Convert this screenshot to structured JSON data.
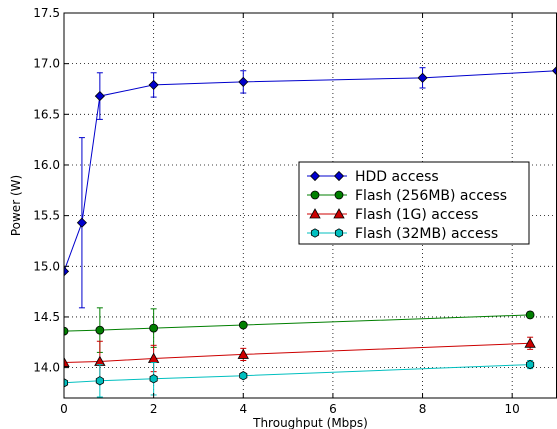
{
  "chart_data": {
    "type": "line",
    "title": "",
    "xlabel": "Throughput (Mbps)",
    "ylabel": "Power (W)",
    "xlim": [
      0,
      11
    ],
    "ylim": [
      13.7,
      17.5
    ],
    "xticks": [
      0,
      2,
      4,
      6,
      8,
      10
    ],
    "yticks": [
      14.0,
      14.5,
      15.0,
      15.5,
      16.0,
      16.5,
      17.0,
      17.5
    ],
    "ytick_labels": [
      "14.0",
      "14.5",
      "15.0",
      "15.5",
      "16.0",
      "16.5",
      "17.0",
      "17.5"
    ],
    "grid": true,
    "legend_position": "center-right",
    "series": [
      {
        "name": "HDD access",
        "color": "#0000cc",
        "marker": "diamond",
        "x": [
          0,
          0.4,
          0.8,
          2,
          4,
          8,
          11
        ],
        "y": [
          14.95,
          15.43,
          16.68,
          16.79,
          16.82,
          16.86,
          16.93
        ],
        "err": [
          null,
          0.84,
          0.23,
          0.12,
          0.11,
          0.1,
          null
        ]
      },
      {
        "name": "Flash (256MB) access",
        "color": "#007f00",
        "marker": "circle",
        "x": [
          0,
          0.8,
          2,
          4,
          10.4
        ],
        "y": [
          14.36,
          14.37,
          14.39,
          14.42,
          14.52
        ],
        "err": [
          null,
          0.22,
          0.19,
          null,
          0.03
        ]
      },
      {
        "name": "Flash (1G) access",
        "color": "#cc0000",
        "marker": "triangle",
        "x": [
          0,
          0.8,
          2,
          4,
          10.4
        ],
        "y": [
          14.05,
          14.06,
          14.09,
          14.13,
          14.24
        ],
        "err": [
          null,
          0.2,
          0.13,
          0.06,
          0.06
        ]
      },
      {
        "name": "Flash (32MB) access",
        "color": "#00bfbf",
        "marker": "hexagon",
        "x": [
          0,
          0.8,
          2,
          4,
          10.4
        ],
        "y": [
          13.85,
          13.87,
          13.89,
          13.92,
          14.03
        ],
        "err": [
          null,
          0.16,
          0.16,
          null,
          0.04
        ]
      }
    ]
  }
}
